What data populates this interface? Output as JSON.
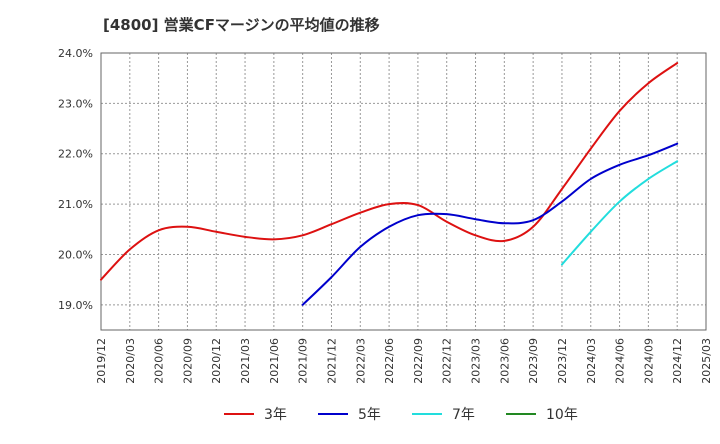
{
  "title": "[4800]  営業CFマージンの平均値の推移",
  "chart_data": {
    "type": "line",
    "title": "[4800]  営業CFマージンの平均値の推移",
    "xlabel": "",
    "ylabel": "",
    "y_unit": "%",
    "ylim": [
      18.5,
      24.0
    ],
    "y_ticks": [
      19.0,
      20.0,
      21.0,
      22.0,
      23.0,
      24.0
    ],
    "y_tick_labels": [
      "19.0%",
      "20.0%",
      "21.0%",
      "22.0%",
      "23.0%",
      "24.0%"
    ],
    "x_ticks": [
      "2019/12",
      "2020/03",
      "2020/06",
      "2020/09",
      "2020/12",
      "2021/03",
      "2021/06",
      "2021/09",
      "2021/12",
      "2022/03",
      "2022/06",
      "2022/09",
      "2022/12",
      "2023/03",
      "2023/06",
      "2023/09",
      "2023/12",
      "2024/03",
      "2024/06",
      "2024/09",
      "2024/12",
      "2025/03"
    ],
    "grid": true,
    "legend_position": "bottom",
    "series": [
      {
        "name": "3年",
        "color": "#dd1111",
        "points": [
          [
            "2019/12",
            19.5
          ],
          [
            "2020/03",
            20.1
          ],
          [
            "2020/06",
            20.48
          ],
          [
            "2020/09",
            20.55
          ],
          [
            "2020/12",
            20.45
          ],
          [
            "2021/03",
            20.35
          ],
          [
            "2021/06",
            20.3
          ],
          [
            "2021/09",
            20.38
          ],
          [
            "2021/12",
            20.6
          ],
          [
            "2022/03",
            20.83
          ],
          [
            "2022/06",
            21.0
          ],
          [
            "2022/09",
            20.98
          ],
          [
            "2022/12",
            20.65
          ],
          [
            "2023/03",
            20.38
          ],
          [
            "2023/06",
            20.27
          ],
          [
            "2023/09",
            20.55
          ],
          [
            "2023/12",
            21.3
          ],
          [
            "2024/03",
            22.1
          ],
          [
            "2024/06",
            22.85
          ],
          [
            "2024/09",
            23.4
          ],
          [
            "2024/12",
            23.8
          ]
        ]
      },
      {
        "name": "5年",
        "color": "#0000cc",
        "points": [
          [
            "2021/09",
            19.0
          ],
          [
            "2021/12",
            19.55
          ],
          [
            "2022/03",
            20.15
          ],
          [
            "2022/06",
            20.55
          ],
          [
            "2022/09",
            20.78
          ],
          [
            "2022/12",
            20.8
          ],
          [
            "2023/03",
            20.7
          ],
          [
            "2023/06",
            20.62
          ],
          [
            "2023/09",
            20.68
          ],
          [
            "2023/12",
            21.05
          ],
          [
            "2024/03",
            21.5
          ],
          [
            "2024/06",
            21.78
          ],
          [
            "2024/09",
            21.97
          ],
          [
            "2024/12",
            22.2
          ]
        ]
      },
      {
        "name": "7年",
        "color": "#22dddd",
        "points": [
          [
            "2023/12",
            19.8
          ],
          [
            "2024/03",
            20.45
          ],
          [
            "2024/06",
            21.05
          ],
          [
            "2024/09",
            21.5
          ],
          [
            "2024/12",
            21.85
          ]
        ]
      },
      {
        "name": "10年",
        "color": "#228822",
        "points": []
      }
    ]
  }
}
